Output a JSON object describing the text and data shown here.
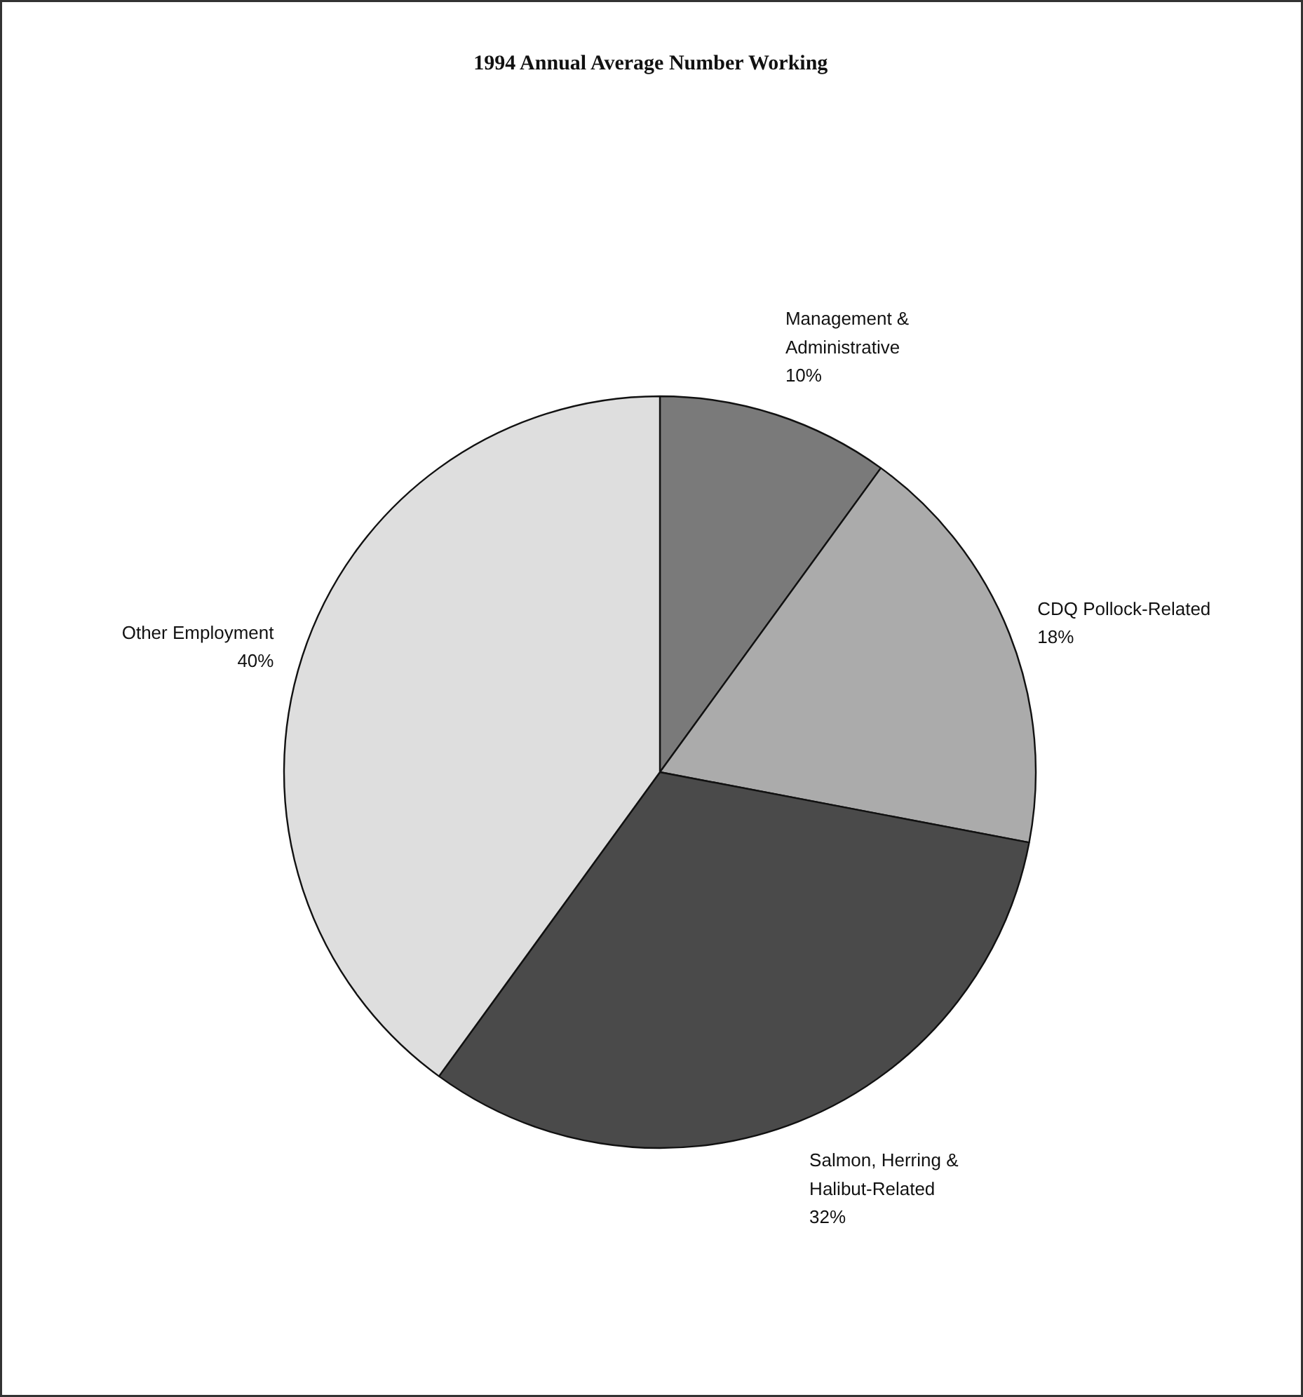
{
  "chart_data": {
    "type": "pie",
    "title": "1994 Annual Average Number Working",
    "categories": [
      "Management &\nAdministrative",
      "CDQ Pollock-Related",
      "Salmon, Herring &\nHalibut-Related",
      "Other Employment"
    ],
    "values": [
      10,
      18,
      32,
      40
    ],
    "value_labels": [
      "10%",
      "18%",
      "32%",
      "40%"
    ],
    "colors": [
      "#7a7a7a",
      "#ababab",
      "#4a4a4a",
      "#dedede"
    ]
  }
}
